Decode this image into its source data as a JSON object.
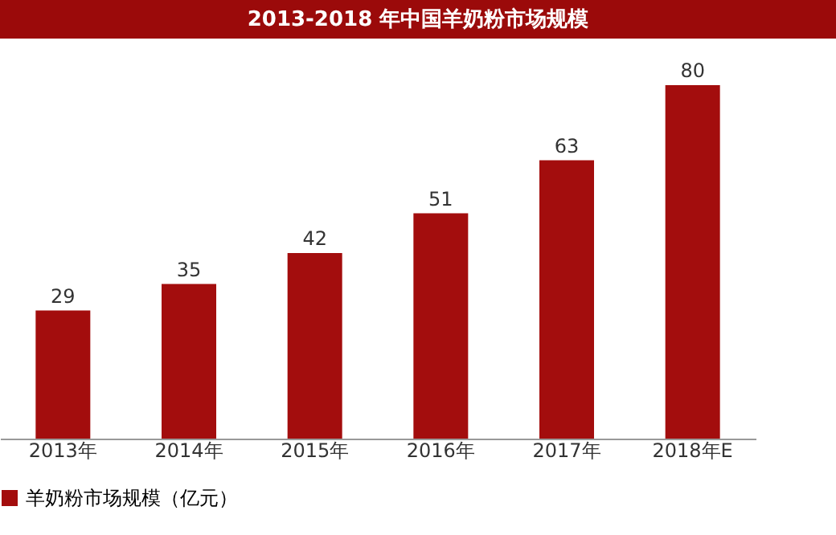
{
  "chart_data": {
    "type": "bar",
    "title": "2013-2018 年中国羊奶粉市场规模",
    "categories": [
      "2013年",
      "2014年",
      "2015年",
      "2016年",
      "2017年",
      "2018年E"
    ],
    "series": [
      {
        "name": "羊奶粉市场规模（亿元）",
        "color": "#a30d0d",
        "values": [
          29,
          35,
          42,
          51,
          63,
          80
        ]
      }
    ],
    "data_labels": true,
    "legend": "bottom",
    "grid": false
  }
}
